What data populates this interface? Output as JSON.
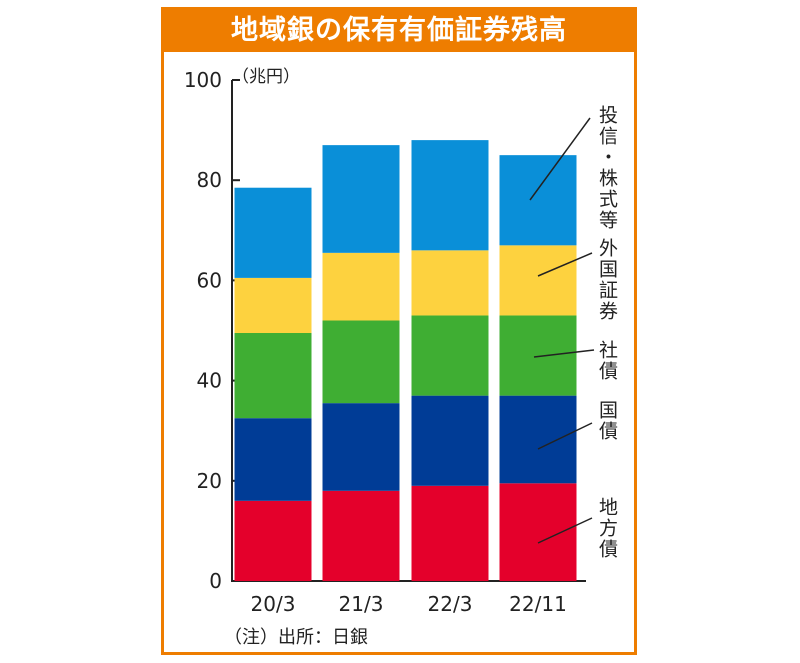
{
  "title": "地域銀の保有有価証券残高",
  "note": "（注）出所：日銀",
  "colors": {
    "frame": "#ee7d00",
    "地方債": "#e4002b",
    "国債": "#003c96",
    "社債": "#3fae33",
    "外国証券": "#fdd23f",
    "投信・株式等": "#0a8fd8"
  },
  "chart_data": {
    "type": "bar",
    "stacked": true,
    "categories": [
      "20/3",
      "21/3",
      "22/3",
      "22/11"
    ],
    "series": [
      {
        "name": "地方債",
        "values": [
          16,
          18,
          19,
          19.5
        ]
      },
      {
        "name": "国債",
        "values": [
          16.5,
          17.5,
          18,
          17.5
        ]
      },
      {
        "name": "社債",
        "values": [
          17,
          16.5,
          16,
          16
        ]
      },
      {
        "name": "外国証券",
        "values": [
          11,
          13.5,
          13,
          14
        ]
      },
      {
        "name": "投信・株式等",
        "values": [
          18,
          21.5,
          22,
          18
        ]
      }
    ],
    "ylabel": "（兆円）",
    "xlabel": "",
    "ylim": [
      0,
      100
    ],
    "yticks": [
      0,
      20,
      40,
      60,
      80,
      100
    ],
    "grid": false,
    "legend": "right, leader lines"
  }
}
